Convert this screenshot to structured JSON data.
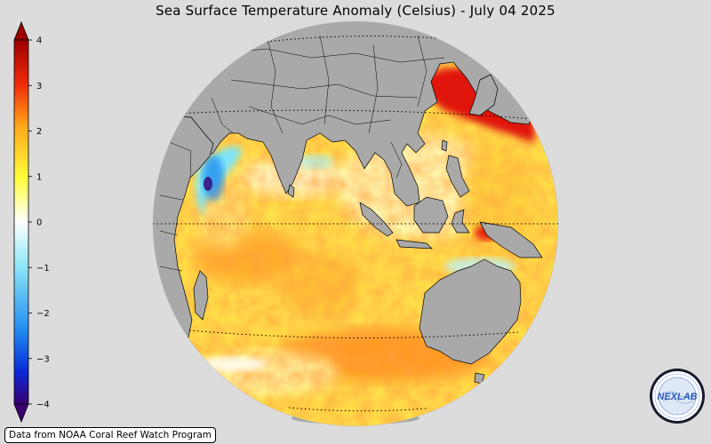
{
  "title": "Sea Surface Temperature Anomaly (Celsius) - July 04 2025",
  "credit": "Data from NOAA Coral Reef Watch Program",
  "logo_text": "NEXLAB",
  "colorbar": {
    "min": -4,
    "max": 4,
    "ticks": [
      "4",
      "3",
      "2",
      "1",
      "0",
      "−1",
      "−2",
      "−3",
      "−4"
    ],
    "colors": [
      "#3a0070",
      "#0a2ad8",
      "#1e8af0",
      "#8ee8f6",
      "#ffffff",
      "#ffff3a",
      "#ffa81a",
      "#f02a08",
      "#9c0000"
    ]
  },
  "colors": {
    "background": "#dcdcdc",
    "land": "#a9a9a9",
    "coastline": "#000000"
  }
}
